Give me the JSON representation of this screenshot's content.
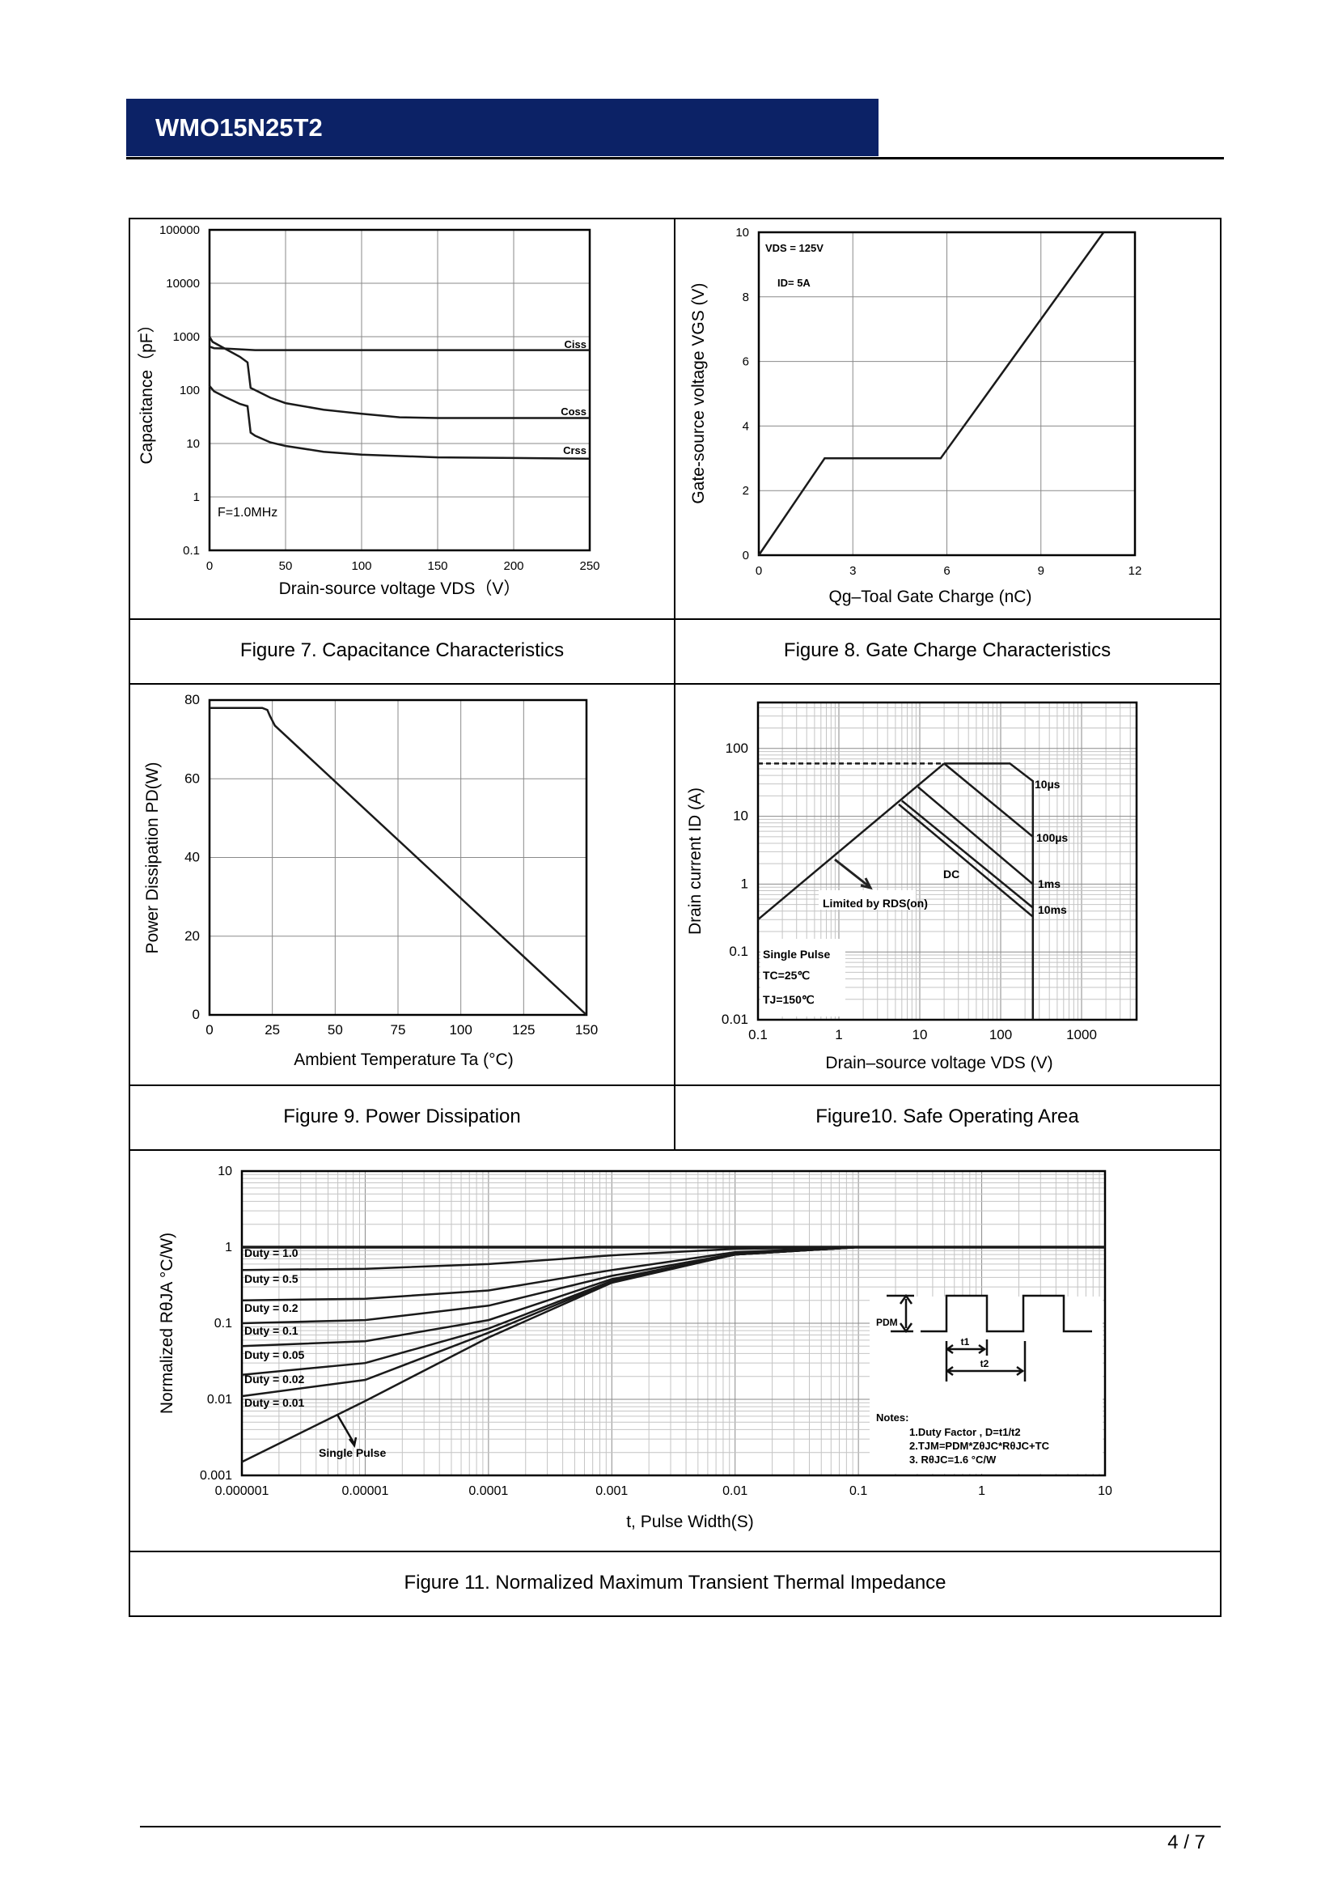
{
  "header": {
    "title": "WMO15N25T2",
    "bar_color": "#0c2266"
  },
  "captions": {
    "fig7": "Figure 7. Capacitance Characteristics",
    "fig8": "Figure 8. Gate Charge Characteristics",
    "fig9": "Figure 9. Power Dissipation",
    "fig10": "Figure10. Safe Operating Area",
    "fig11": "Figure 11. Normalized Maximum Transient Thermal Impedance"
  },
  "footer": {
    "page": "4 / 7"
  },
  "chart_data": [
    {
      "id": "fig7",
      "type": "line",
      "title": "",
      "xlabel": "Drain-source voltage VDS（V）",
      "ylabel": "Capacitance（pF）",
      "x_scale": "linear",
      "y_scale": "log",
      "xlim": [
        0,
        250
      ],
      "ylim": [
        0.1,
        100000
      ],
      "grid": true,
      "x_ticks": [
        0,
        50,
        100,
        150,
        200,
        250
      ],
      "y_ticks": [
        0.1,
        1,
        10,
        100,
        1000,
        10000,
        100000
      ],
      "annotations": [
        "F=1.0MHz"
      ],
      "series": [
        {
          "name": "Ciss",
          "points": [
            [
              0,
              650
            ],
            [
              3,
              610
            ],
            [
              10,
              600
            ],
            [
              30,
              560
            ],
            [
              250,
              560
            ]
          ]
        },
        {
          "name": "Coss",
          "points": [
            [
              0,
              1000
            ],
            [
              2,
              800
            ],
            [
              10,
              600
            ],
            [
              20,
              420
            ],
            [
              25,
              330
            ],
            [
              27,
              110
            ],
            [
              30,
              100
            ],
            [
              40,
              72
            ],
            [
              50,
              57
            ],
            [
              75,
              43
            ],
            [
              100,
              36
            ],
            [
              125,
              31
            ],
            [
              150,
              30
            ],
            [
              250,
              30
            ]
          ]
        },
        {
          "name": "Crss",
          "points": [
            [
              0,
              120
            ],
            [
              3,
              95
            ],
            [
              10,
              75
            ],
            [
              20,
              55
            ],
            [
              25,
              50
            ],
            [
              27,
              16
            ],
            [
              30,
              14
            ],
            [
              40,
              10.5
            ],
            [
              50,
              9
            ],
            [
              75,
              7
            ],
            [
              100,
              6.2
            ],
            [
              150,
              5.5
            ],
            [
              250,
              5.2
            ]
          ]
        }
      ]
    },
    {
      "id": "fig8",
      "type": "line",
      "title": "",
      "xlabel": "Qg–Toal Gate Charge  (nC)",
      "ylabel": "Gate-source voltage VGS (V)",
      "x_scale": "linear",
      "y_scale": "linear",
      "xlim": [
        0,
        12
      ],
      "ylim": [
        0,
        10
      ],
      "grid": true,
      "x_ticks": [
        0,
        3,
        6,
        9,
        12
      ],
      "y_ticks": [
        0,
        2,
        4,
        6,
        8,
        10
      ],
      "annotations": [
        "VDS = 125V",
        "ID= 5A"
      ],
      "series": [
        {
          "points": [
            [
              0,
              0
            ],
            [
              2.1,
              3
            ],
            [
              5.8,
              3
            ],
            [
              11,
              10
            ]
          ]
        }
      ]
    },
    {
      "id": "fig9",
      "type": "line",
      "title": "",
      "xlabel": "Ambient Temperature Ta (°C)",
      "ylabel": "Power Dissipation PD(W)",
      "x_scale": "linear",
      "y_scale": "linear",
      "xlim": [
        0,
        150
      ],
      "ylim": [
        0,
        80
      ],
      "grid": true,
      "x_ticks": [
        0,
        25,
        50,
        75,
        100,
        125,
        150
      ],
      "y_ticks": [
        0,
        20,
        40,
        60,
        80
      ],
      "annotations": [],
      "series": [
        {
          "points": [
            [
              0,
              78
            ],
            [
              21,
              78
            ],
            [
              23,
              77.5
            ],
            [
              24,
              76
            ],
            [
              26,
              73.5
            ],
            [
              150,
              0
            ]
          ]
        }
      ]
    },
    {
      "id": "fig10",
      "type": "line",
      "title": "",
      "xlabel": "Drain–source voltage VDS (V)",
      "ylabel": "Drain current ID (A)",
      "x_scale": "log",
      "y_scale": "log",
      "xlim": [
        0.1,
        4786
      ],
      "ylim": [
        0.01,
        476
      ],
      "grid": true,
      "x_ticks": [
        0.1,
        1,
        10,
        100,
        1000
      ],
      "y_ticks": [
        0.01,
        0.1,
        1,
        10,
        100
      ],
      "annotations": [
        "10µs",
        "100µs",
        "1ms",
        "10ms",
        "DC",
        "Limited by RDS(on)",
        "Single Pulse",
        "TC=25℃",
        "TJ=150℃"
      ],
      "series": [
        {
          "name": "Limited by RDS(on)",
          "points": [
            [
              0.1,
              0.3
            ],
            [
              20,
              60
            ]
          ]
        },
        {
          "name": "ID limit",
          "style": "dashed",
          "points": [
            [
              0.1,
              60
            ],
            [
              20,
              60
            ]
          ]
        },
        {
          "name": "10µs",
          "points": [
            [
              20,
              60
            ],
            [
              130,
              60
            ],
            [
              250,
              33
            ],
            [
              250,
              0.01
            ]
          ]
        },
        {
          "name": "100µs",
          "points": [
            [
              20,
              60
            ],
            [
              250,
              5
            ]
          ]
        },
        {
          "name": "1ms",
          "points": [
            [
              9.5,
              27
            ],
            [
              250,
              1
            ]
          ]
        },
        {
          "name": "10ms",
          "points": [
            [
              6,
              17
            ],
            [
              250,
              0.45
            ]
          ]
        },
        {
          "name": "DC",
          "points": [
            [
              5.5,
              15
            ],
            [
              250,
              0.33
            ]
          ]
        }
      ]
    },
    {
      "id": "fig11",
      "type": "line",
      "title": "",
      "xlabel": "t, Pulse Width(S)",
      "ylabel": "Normalized RθJA °C/W)",
      "x_scale": "log",
      "y_scale": "log",
      "xlim": [
        1e-06,
        10
      ],
      "ylim": [
        0.001,
        10
      ],
      "grid": true,
      "x_ticks": [
        1e-06,
        1e-05,
        0.0001,
        0.001,
        0.01,
        0.1,
        1,
        10
      ],
      "y_ticks": [
        0.001,
        0.01,
        0.1,
        1,
        10
      ],
      "annotations": [
        "Single Pulse",
        "PDM",
        "t1",
        "t2",
        "Notes:",
        "1.Duty Factor , D=t1/t2",
        "2.TJM=PDM*ZθJC*RθJC+TC",
        "3. RθJC=1.6 °C/W"
      ],
      "series": [
        {
          "name": "Duty = 1.0",
          "points": [
            [
              1e-06,
              1
            ],
            [
              10,
              1
            ]
          ]
        },
        {
          "name": "Duty = 0.5",
          "points": [
            [
              1e-06,
              0.5
            ],
            [
              1e-05,
              0.52
            ],
            [
              0.0001,
              0.6
            ],
            [
              0.001,
              0.78
            ],
            [
              0.01,
              0.95
            ],
            [
              0.1,
              1
            ],
            [
              10,
              1
            ]
          ]
        },
        {
          "name": "Duty = 0.2",
          "points": [
            [
              1e-06,
              0.2
            ],
            [
              1e-05,
              0.21
            ],
            [
              0.0001,
              0.27
            ],
            [
              0.001,
              0.5
            ],
            [
              0.01,
              0.86
            ],
            [
              0.1,
              1
            ],
            [
              10,
              1
            ]
          ]
        },
        {
          "name": "Duty = 0.1",
          "points": [
            [
              1e-06,
              0.1
            ],
            [
              1e-05,
              0.11
            ],
            [
              0.0001,
              0.17
            ],
            [
              0.001,
              0.42
            ],
            [
              0.01,
              0.82
            ],
            [
              0.1,
              1
            ],
            [
              10,
              1
            ]
          ]
        },
        {
          "name": "Duty = 0.05",
          "points": [
            [
              1e-06,
              0.05
            ],
            [
              1e-05,
              0.058
            ],
            [
              0.0001,
              0.11
            ],
            [
              0.001,
              0.38
            ],
            [
              0.01,
              0.8
            ],
            [
              0.1,
              1
            ],
            [
              10,
              1
            ]
          ]
        },
        {
          "name": "Duty = 0.02",
          "points": [
            [
              1e-06,
              0.021
            ],
            [
              1e-05,
              0.03
            ],
            [
              0.0001,
              0.085
            ],
            [
              0.001,
              0.36
            ],
            [
              0.01,
              0.8
            ],
            [
              0.1,
              1
            ],
            [
              10,
              1
            ]
          ]
        },
        {
          "name": "Duty = 0.01",
          "points": [
            [
              1e-06,
              0.011
            ],
            [
              1e-05,
              0.018
            ],
            [
              0.0001,
              0.075
            ],
            [
              0.001,
              0.35
            ],
            [
              0.01,
              0.8
            ],
            [
              0.1,
              1
            ],
            [
              10,
              1
            ]
          ]
        },
        {
          "name": "Single Pulse",
          "points": [
            [
              1e-06,
              0.0015
            ],
            [
              1e-05,
              0.0095
            ],
            [
              0.0001,
              0.065
            ],
            [
              0.001,
              0.34
            ],
            [
              0.01,
              0.8
            ],
            [
              0.1,
              1
            ],
            [
              10,
              1
            ]
          ]
        }
      ]
    }
  ]
}
